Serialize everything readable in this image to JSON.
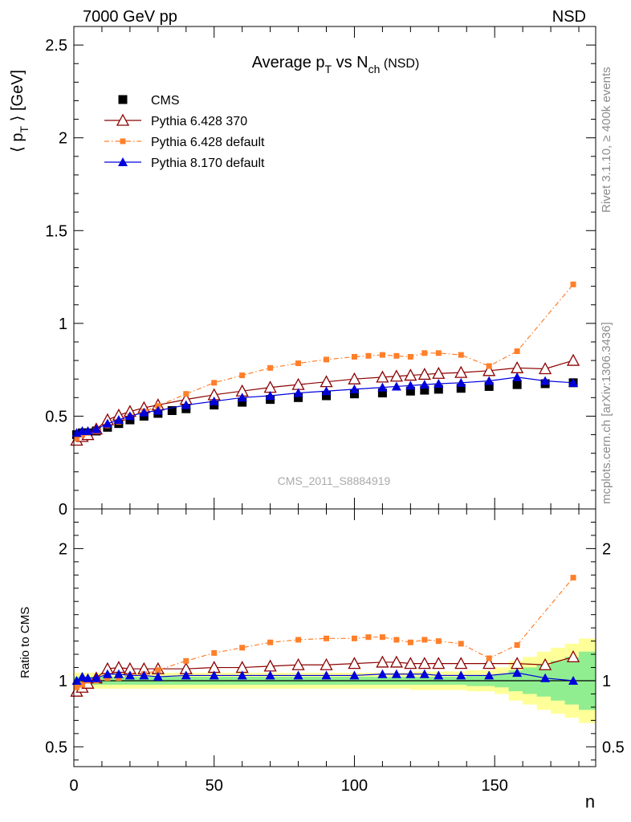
{
  "header": {
    "left": "7000 GeV pp",
    "right": "NSD"
  },
  "side_labels": {
    "top": "Rivet 3.1.10, ≥ 400k events",
    "bottom": "mcplots.cern.ch [arXiv:1306.3436]"
  },
  "analysis_tag": "CMS_2011_S8884919",
  "colors": {
    "cms": "#000000",
    "p6_370": "#8b0000",
    "p6_default": "#ff7f2a",
    "p8": "#0000dd",
    "band_inner": "#90ee90",
    "band_outer": "#ffff99"
  },
  "chart_data": [
    {
      "type": "scatter",
      "title": {
        "main": "Average p",
        "sub1": "T",
        "mid": " vs N",
        "sub2": "ch",
        "tail": " (NSD)"
      },
      "ylabel": {
        "pre": "⟨ p",
        "sub": "T",
        "post": " ⟩ [GeV]"
      },
      "xlim": [
        0,
        186
      ],
      "ylim": [
        0,
        2.6
      ],
      "y_ticks": [
        "0.5",
        "1",
        "1.5",
        "2",
        "2.5"
      ],
      "y_ticks_partial": [
        "0"
      ],
      "legend": {
        "position": "top-left",
        "entries": [
          "CMS",
          "Pythia 6.428 370",
          "Pythia 6.428 default",
          "Pythia 8.170 default"
        ]
      },
      "series": [
        {
          "name": "CMS",
          "key": "cms",
          "marker": "square",
          "x": [
            1,
            3,
            5,
            8,
            12,
            16,
            20,
            25,
            30,
            35,
            40,
            50,
            60,
            70,
            80,
            90,
            100,
            110,
            120,
            125,
            130,
            138,
            148,
            158,
            168,
            178
          ],
          "y": [
            0.4,
            0.41,
            0.41,
            0.42,
            0.44,
            0.46,
            0.48,
            0.5,
            0.515,
            0.53,
            0.54,
            0.56,
            0.575,
            0.59,
            0.6,
            0.61,
            0.62,
            0.625,
            0.635,
            0.64,
            0.645,
            0.65,
            0.66,
            0.67,
            0.675,
            0.68
          ]
        },
        {
          "name": "Pythia 6.428 370",
          "key": "p6_370",
          "marker": "triangle-open",
          "x": [
            1,
            3,
            5,
            8,
            12,
            16,
            20,
            25,
            30,
            40,
            50,
            60,
            70,
            80,
            90,
            100,
            110,
            115,
            120,
            125,
            130,
            138,
            148,
            158,
            168,
            178
          ],
          "y": [
            0.37,
            0.39,
            0.4,
            0.43,
            0.48,
            0.505,
            0.525,
            0.545,
            0.56,
            0.59,
            0.615,
            0.635,
            0.655,
            0.67,
            0.685,
            0.7,
            0.71,
            0.715,
            0.72,
            0.725,
            0.73,
            0.735,
            0.745,
            0.76,
            0.755,
            0.8
          ]
        },
        {
          "name": "Pythia 6.428 default",
          "key": "p6_default",
          "marker": "square-small",
          "dashed": true,
          "x": [
            1,
            3,
            5,
            8,
            12,
            16,
            20,
            25,
            30,
            40,
            50,
            60,
            70,
            80,
            90,
            100,
            105,
            110,
            115,
            120,
            125,
            130,
            138,
            148,
            158,
            178
          ],
          "y": [
            0.38,
            0.4,
            0.41,
            0.42,
            0.45,
            0.47,
            0.5,
            0.525,
            0.555,
            0.62,
            0.68,
            0.72,
            0.76,
            0.785,
            0.805,
            0.82,
            0.825,
            0.83,
            0.825,
            0.82,
            0.84,
            0.84,
            0.83,
            0.77,
            0.85,
            1.21
          ]
        },
        {
          "name": "Pythia 8.170 default",
          "key": "p8",
          "marker": "triangle",
          "x": [
            1,
            3,
            5,
            8,
            12,
            16,
            20,
            25,
            30,
            40,
            50,
            60,
            70,
            80,
            90,
            100,
            110,
            115,
            120,
            125,
            130,
            138,
            148,
            158,
            168,
            178
          ],
          "y": [
            0.41,
            0.42,
            0.42,
            0.43,
            0.46,
            0.48,
            0.5,
            0.52,
            0.53,
            0.56,
            0.58,
            0.6,
            0.61,
            0.625,
            0.635,
            0.645,
            0.655,
            0.66,
            0.665,
            0.67,
            0.675,
            0.68,
            0.69,
            0.71,
            0.69,
            0.68
          ]
        }
      ]
    },
    {
      "type": "scatter",
      "ylabel": "Ratio to CMS",
      "xlabel": "n",
      "xlim": [
        0,
        186
      ],
      "ylim": [
        0.35,
        2.3
      ],
      "x_ticks": [
        "0",
        "50",
        "100",
        "150"
      ],
      "y_ticks": [
        "0.5",
        "1",
        "2"
      ],
      "band": {
        "x": [
          0,
          30,
          60,
          90,
          120,
          130,
          140,
          150,
          155,
          160,
          165,
          170,
          175,
          180,
          186
        ],
        "inner": [
          0.03,
          0.03,
          0.03,
          0.03,
          0.03,
          0.03,
          0.04,
          0.05,
          0.08,
          0.1,
          0.12,
          0.15,
          0.18,
          0.22,
          0.22
        ],
        "outer": [
          0.06,
          0.06,
          0.06,
          0.06,
          0.07,
          0.07,
          0.08,
          0.1,
          0.15,
          0.18,
          0.22,
          0.25,
          0.28,
          0.32,
          0.32
        ]
      },
      "series": [
        {
          "name": "Pythia 6.428 370",
          "key": "p6_370",
          "marker": "triangle-open",
          "x": [
            1,
            3,
            5,
            8,
            12,
            16,
            20,
            25,
            30,
            40,
            50,
            60,
            70,
            80,
            90,
            100,
            110,
            115,
            120,
            125,
            130,
            138,
            148,
            158,
            168,
            178
          ],
          "y": [
            0.92,
            0.95,
            0.98,
            1.02,
            1.09,
            1.1,
            1.09,
            1.09,
            1.09,
            1.09,
            1.1,
            1.1,
            1.11,
            1.12,
            1.12,
            1.13,
            1.14,
            1.14,
            1.13,
            1.13,
            1.13,
            1.13,
            1.13,
            1.13,
            1.12,
            1.18
          ]
        },
        {
          "name": "Pythia 6.428 default",
          "key": "p6_default",
          "marker": "square-small",
          "dashed": true,
          "x": [
            1,
            3,
            5,
            8,
            12,
            16,
            20,
            25,
            30,
            40,
            50,
            60,
            70,
            80,
            90,
            100,
            105,
            110,
            115,
            120,
            125,
            130,
            138,
            148,
            158,
            178
          ],
          "y": [
            0.95,
            0.97,
            1.0,
            1.0,
            1.02,
            1.02,
            1.04,
            1.05,
            1.08,
            1.15,
            1.21,
            1.25,
            1.29,
            1.31,
            1.32,
            1.32,
            1.33,
            1.33,
            1.31,
            1.29,
            1.31,
            1.3,
            1.28,
            1.17,
            1.27,
            1.78
          ]
        },
        {
          "name": "Pythia 8.170 default",
          "key": "p8",
          "marker": "triangle",
          "x": [
            1,
            3,
            5,
            8,
            12,
            16,
            20,
            25,
            30,
            40,
            50,
            60,
            70,
            80,
            90,
            100,
            110,
            115,
            120,
            125,
            130,
            138,
            148,
            158,
            168,
            178
          ],
          "y": [
            1.0,
            1.03,
            1.02,
            1.02,
            1.05,
            1.05,
            1.04,
            1.04,
            1.03,
            1.04,
            1.04,
            1.04,
            1.04,
            1.04,
            1.04,
            1.04,
            1.05,
            1.05,
            1.05,
            1.05,
            1.04,
            1.04,
            1.04,
            1.06,
            1.02,
            1.0
          ]
        }
      ]
    }
  ]
}
